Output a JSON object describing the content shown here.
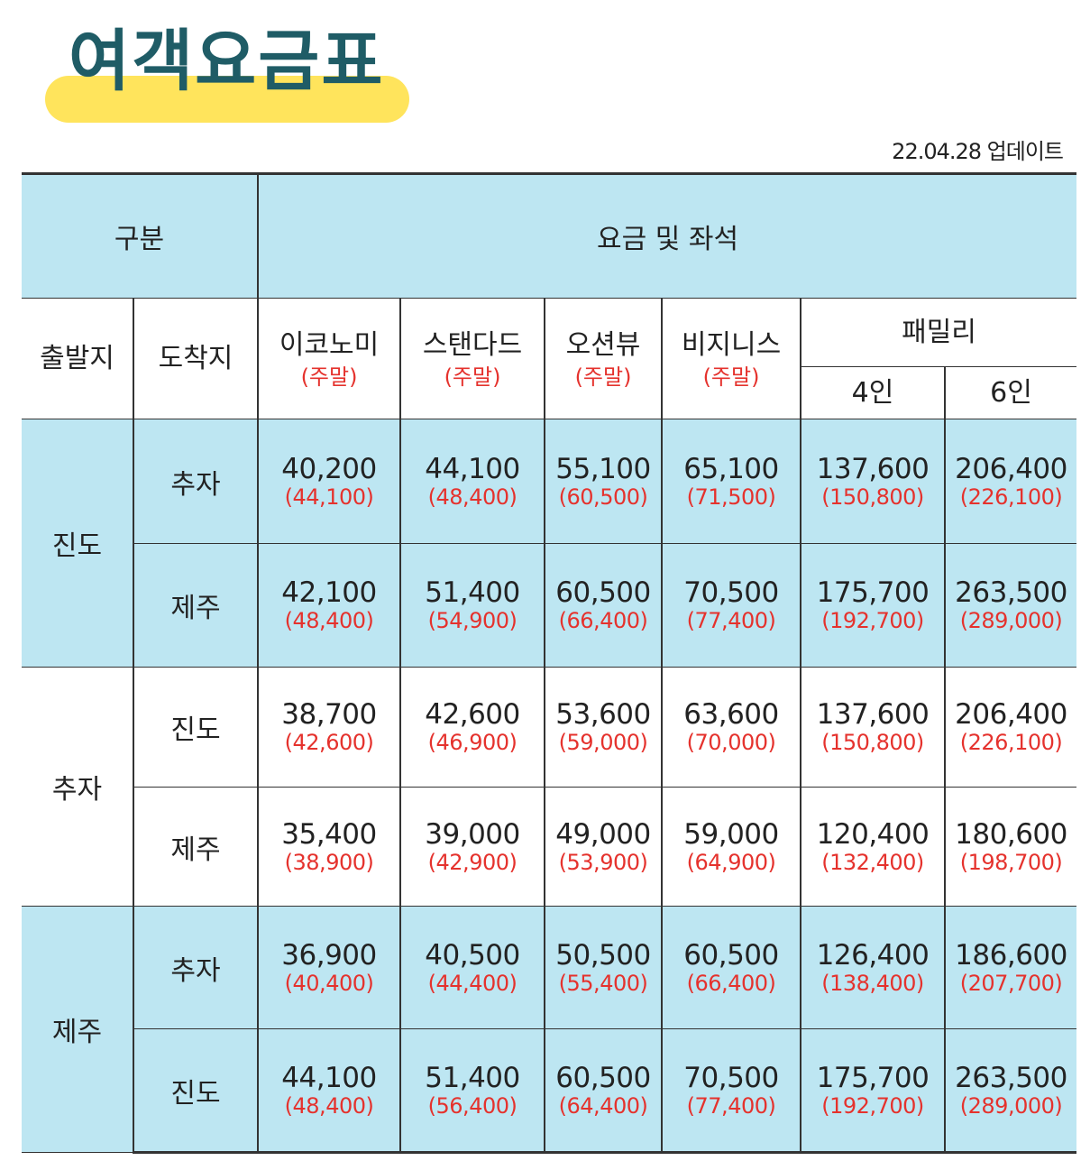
{
  "title": "여객요금표",
  "updated": "22.04.28 업데이트",
  "header": {
    "category": "구분",
    "fare_and_seats": "요금 및 좌석",
    "departure": "출발지",
    "arrival": "도착지",
    "classes": [
      {
        "name": "이코노미",
        "weekend": "(주말)"
      },
      {
        "name": "스탠다드",
        "weekend": "(주말)"
      },
      {
        "name": "오션뷰",
        "weekend": "(주말)"
      },
      {
        "name": "비지니스",
        "weekend": "(주말)"
      }
    ],
    "family": "패밀리",
    "family_4": "4인",
    "family_6": "6인"
  },
  "groups": [
    {
      "origin": "진도",
      "routes": [
        {
          "dest": "추자",
          "fares": [
            {
              "base": "40,200",
              "weekend": "(44,100)"
            },
            {
              "base": "44,100",
              "weekend": "(48,400)"
            },
            {
              "base": "55,100",
              "weekend": "(60,500)"
            },
            {
              "base": "65,100",
              "weekend": "(71,500)"
            },
            {
              "base": "137,600",
              "weekend": "(150,800)"
            },
            {
              "base": "206,400",
              "weekend": "(226,100)"
            }
          ]
        },
        {
          "dest": "제주",
          "fares": [
            {
              "base": "42,100",
              "weekend": "(48,400)"
            },
            {
              "base": "51,400",
              "weekend": "(54,900)"
            },
            {
              "base": "60,500",
              "weekend": "(66,400)"
            },
            {
              "base": "70,500",
              "weekend": "(77,400)"
            },
            {
              "base": "175,700",
              "weekend": "(192,700)"
            },
            {
              "base": "263,500",
              "weekend": "(289,000)"
            }
          ]
        }
      ]
    },
    {
      "origin": "추자",
      "routes": [
        {
          "dest": "진도",
          "fares": [
            {
              "base": "38,700",
              "weekend": "(42,600)"
            },
            {
              "base": "42,600",
              "weekend": "(46,900)"
            },
            {
              "base": "53,600",
              "weekend": "(59,000)"
            },
            {
              "base": "63,600",
              "weekend": "(70,000)"
            },
            {
              "base": "137,600",
              "weekend": "(150,800)"
            },
            {
              "base": "206,400",
              "weekend": "(226,100)"
            }
          ]
        },
        {
          "dest": "제주",
          "fares": [
            {
              "base": "35,400",
              "weekend": "(38,900)"
            },
            {
              "base": "39,000",
              "weekend": "(42,900)"
            },
            {
              "base": "49,000",
              "weekend": "(53,900)"
            },
            {
              "base": "59,000",
              "weekend": "(64,900)"
            },
            {
              "base": "120,400",
              "weekend": "(132,400)"
            },
            {
              "base": "180,600",
              "weekend": "(198,700)"
            }
          ]
        }
      ]
    },
    {
      "origin": "제주",
      "routes": [
        {
          "dest": "추자",
          "fares": [
            {
              "base": "36,900",
              "weekend": "(40,400)"
            },
            {
              "base": "40,500",
              "weekend": "(44,400)"
            },
            {
              "base": "50,500",
              "weekend": "(55,400)"
            },
            {
              "base": "60,500",
              "weekend": "(66,400)"
            },
            {
              "base": "126,400",
              "weekend": "(138,400)"
            },
            {
              "base": "186,600",
              "weekend": "(207,700)"
            }
          ]
        },
        {
          "dest": "진도",
          "fares": [
            {
              "base": "44,100",
              "weekend": "(48,400)"
            },
            {
              "base": "51,400",
              "weekend": "(56,400)"
            },
            {
              "base": "60,500",
              "weekend": "(64,400)"
            },
            {
              "base": "70,500",
              "weekend": "(77,400)"
            },
            {
              "base": "175,700",
              "weekend": "(192,700)"
            },
            {
              "base": "263,500",
              "weekend": "(289,000)"
            }
          ]
        }
      ]
    }
  ],
  "colors": {
    "title": "#1f5c66",
    "highlight": "#ffe45c",
    "cell_blue": "#bde6f2",
    "weekend_red": "#e5322d"
  }
}
